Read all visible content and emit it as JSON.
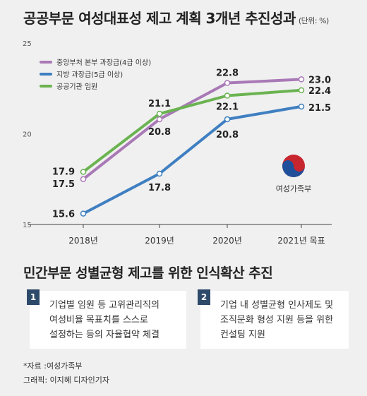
{
  "title": "공공부문 여성대표성 제고 계획 3개년 추진성과",
  "unit": "(단위: %)",
  "chart_data": {
    "type": "line",
    "title": "공공부문 여성대표성 제고 계획 3개년 추진성과",
    "categories": [
      "2018년",
      "2019년",
      "2020년",
      "2021년 목표"
    ],
    "ylim": [
      15,
      25
    ],
    "y_ticks": [
      "15",
      "20",
      "25"
    ],
    "legend_position": "top-left",
    "grid": false,
    "series": [
      {
        "name": "중앙부처 본부 과장급(4급 이상)",
        "values": [
          17.5,
          20.8,
          22.8,
          23.0
        ],
        "labels": [
          "17.5",
          "20.8",
          "22.8",
          "23.0"
        ],
        "color": "#a979b6"
      },
      {
        "name": "지방 과장급(5급 이상)",
        "values": [
          15.6,
          17.8,
          20.8,
          21.5
        ],
        "labels": [
          "15.6",
          "17.8",
          "20.8",
          "21.5"
        ],
        "color": "#3f7fc1"
      },
      {
        "name": "공공기관 임원",
        "values": [
          17.9,
          21.1,
          22.1,
          22.4
        ],
        "labels": [
          "17.9",
          "21.1",
          "22.1",
          "22.4"
        ],
        "color": "#6bb351"
      }
    ]
  },
  "logo": {
    "text": "여성가족부"
  },
  "section_title": "민간부문 성별균형 제고를 위한 인식확산 추진",
  "cards": [
    {
      "num": "1",
      "text": "기업별 임원 등 고위관리직의\n여성비율 목표치를 스스로\n설정하는 등의 자율협약 체결"
    },
    {
      "num": "2",
      "text": "기업 내 성별균형 인사제도 및\n조직문화 형성 지원 등을 위한\n컨설팅 지원"
    }
  ],
  "source": "*자료 :여성가족부",
  "credit": "그래픽: 이지혜 디자인기자"
}
